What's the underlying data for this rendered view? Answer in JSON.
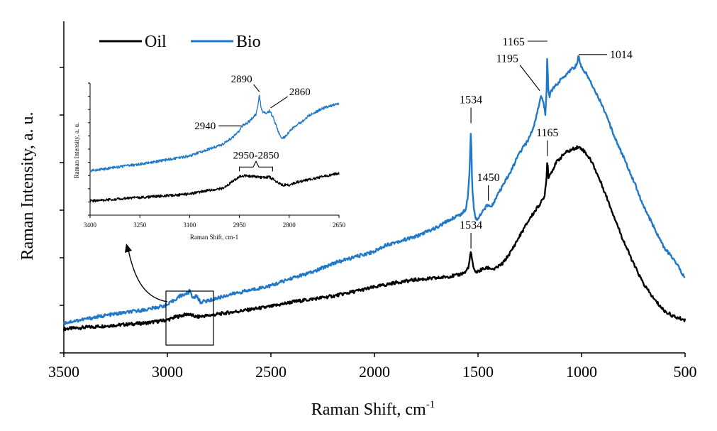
{
  "chart_data": {
    "type": "line",
    "title": "",
    "xlabel": "Raman Shift, cm",
    "xlabel_sup": "-1",
    "ylabel": "Raman Intensity, a. u.",
    "xlim": [
      3500,
      500
    ],
    "x_reversed": true,
    "xticks": [
      "3500",
      "3000",
      "2500",
      "2000",
      "1500",
      "1000",
      "500"
    ],
    "ylim": [
      0,
      100
    ],
    "grid": false,
    "legend": {
      "placement": "top-left",
      "entries": [
        "Oil",
        "Bio"
      ]
    },
    "series": [
      {
        "name": "Oil",
        "color": "#000000",
        "x": [
          3500,
          3300,
          3100,
          3000,
          2960,
          2900,
          2860,
          2800,
          2700,
          2600,
          2500,
          2400,
          2200,
          2000,
          1900,
          1800,
          1700,
          1600,
          1560,
          1545,
          1534,
          1522,
          1505,
          1480,
          1450,
          1420,
          1380,
          1340,
          1300,
          1250,
          1200,
          1180,
          1170,
          1165,
          1160,
          1150,
          1120,
          1080,
          1050,
          1020,
          1000,
          980,
          950,
          900,
          850,
          800,
          750,
          700,
          650,
          600,
          550,
          500
        ],
        "y": [
          4,
          5,
          6,
          7,
          8,
          9,
          8,
          8.5,
          9.5,
          10.5,
          11.5,
          13,
          15,
          18,
          19.5,
          20.5,
          21,
          22,
          23,
          25,
          30,
          24,
          23,
          24,
          24.5,
          24,
          26,
          30,
          35,
          41,
          46,
          48,
          54,
          61,
          55,
          56,
          60,
          63,
          64,
          65,
          64.5,
          63,
          60,
          52,
          43,
          34,
          26,
          19,
          14,
          10,
          8,
          7
        ]
      },
      {
        "name": "Bio",
        "color": "#1f78c8",
        "x": [
          3500,
          3300,
          3100,
          3000,
          2960,
          2940,
          2920,
          2900,
          2890,
          2880,
          2860,
          2840,
          2800,
          2700,
          2600,
          2500,
          2400,
          2300,
          2200,
          2100,
          2000,
          1950,
          1900,
          1800,
          1700,
          1650,
          1600,
          1580,
          1560,
          1550,
          1540,
          1534,
          1528,
          1520,
          1510,
          1500,
          1480,
          1450,
          1440,
          1420,
          1380,
          1340,
          1300,
          1260,
          1230,
          1210,
          1195,
          1185,
          1175,
          1168,
          1165,
          1162,
          1155,
          1145,
          1120,
          1080,
          1050,
          1030,
          1020,
          1014,
          1008,
          995,
          980,
          950,
          900,
          850,
          800,
          750,
          700,
          650,
          600,
          550,
          500
        ],
        "y": [
          6,
          8.5,
          10.5,
          12,
          14,
          15,
          15.5,
          16,
          17,
          14.5,
          15,
          13,
          13.5,
          15.5,
          17,
          18.5,
          21,
          23,
          26,
          28,
          30,
          32,
          33,
          35,
          38,
          40,
          42,
          42.5,
          44,
          48,
          58,
          72,
          52,
          44,
          41,
          41,
          43,
          46,
          44.5,
          47,
          52,
          57,
          63,
          67,
          72,
          78,
          82,
          80,
          76,
          85,
          100,
          85,
          82,
          84,
          86,
          89,
          91,
          92,
          93,
          96,
          93,
          91,
          90,
          86,
          79,
          70,
          62,
          54,
          45,
          38,
          31,
          27,
          21
        ]
      }
    ],
    "annotations": [
      {
        "text": "1165",
        "series": "Bio",
        "x": 1165
      },
      {
        "text": "1014",
        "series": "Bio",
        "x": 1014
      },
      {
        "text": "1195",
        "series": "Bio",
        "x": 1195
      },
      {
        "text": "1534",
        "series": "Bio",
        "x": 1534
      },
      {
        "text": "1450",
        "series": "Bio",
        "x": 1450
      },
      {
        "text": "1165",
        "series": "Oil",
        "x": 1165
      },
      {
        "text": "1534",
        "series": "Oil",
        "x": 1534
      }
    ],
    "inset": {
      "xlabel": "Raman Shift, cm-1",
      "ylabel": "Raman Intensity, a. u.",
      "xlim": [
        3400,
        2650
      ],
      "xticks": [
        "3400",
        "3250",
        "3100",
        "2950",
        "2800",
        "2650"
      ],
      "ylim": [
        0,
        100
      ],
      "zoom_region": {
        "x_from": 3000,
        "x_to": 2750
      },
      "series": [
        {
          "name": "Oil",
          "x": [
            3400,
            3300,
            3200,
            3100,
            3050,
            3000,
            2980,
            2960,
            2950,
            2930,
            2900,
            2880,
            2860,
            2840,
            2820,
            2800,
            2780,
            2750,
            2700,
            2650
          ],
          "y": [
            3,
            5,
            7,
            9,
            12,
            14,
            18,
            22,
            24,
            25,
            24,
            23,
            24,
            20,
            17,
            17,
            19,
            21,
            24,
            27
          ]
        },
        {
          "name": "Bio",
          "x": [
            3400,
            3300,
            3200,
            3100,
            3050,
            3000,
            2970,
            2950,
            2940,
            2920,
            2900,
            2895,
            2890,
            2885,
            2880,
            2870,
            2860,
            2850,
            2840,
            2830,
            2820,
            2810,
            2800,
            2780,
            2760,
            2740,
            2720,
            2700,
            2680,
            2650
          ],
          "y": [
            29,
            33,
            37,
            42,
            47,
            52,
            58,
            64,
            68,
            72,
            78,
            84,
            95,
            84,
            80,
            79,
            81,
            76,
            69,
            61,
            57,
            59,
            63,
            68,
            72,
            77,
            80,
            83,
            85,
            87
          ]
        }
      ],
      "annotations": [
        {
          "text": "2890",
          "series": "Bio",
          "x": 2890
        },
        {
          "text": "2860",
          "series": "Bio",
          "x": 2860
        },
        {
          "text": "2940",
          "series": "Bio",
          "x": 2940
        },
        {
          "text": "2950-2850",
          "series": "Oil",
          "bracket": [
            2950,
            2850
          ]
        }
      ]
    }
  }
}
